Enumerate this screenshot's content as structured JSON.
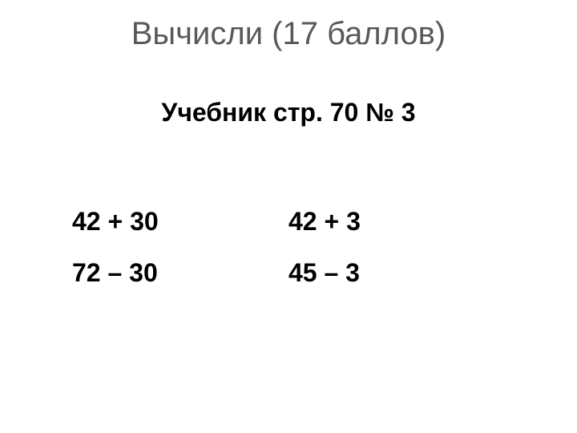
{
  "title": "Вычисли (17 баллов)",
  "subtitle": "Учебник стр. 70 № 3",
  "columns": [
    {
      "rows": [
        "42 + 30",
        "72 – 30"
      ]
    },
    {
      "rows": [
        "42 + 3",
        "45 – 3"
      ]
    }
  ],
  "style": {
    "background_color": "#ffffff",
    "title_color": "#595959",
    "title_fontsize": 40,
    "title_fontweight": 400,
    "subtitle_color": "#000000",
    "subtitle_fontsize": 32,
    "subtitle_fontweight": 700,
    "expr_color": "#000000",
    "expr_fontsize": 32,
    "expr_fontweight": 700,
    "font_family": "Arial"
  }
}
